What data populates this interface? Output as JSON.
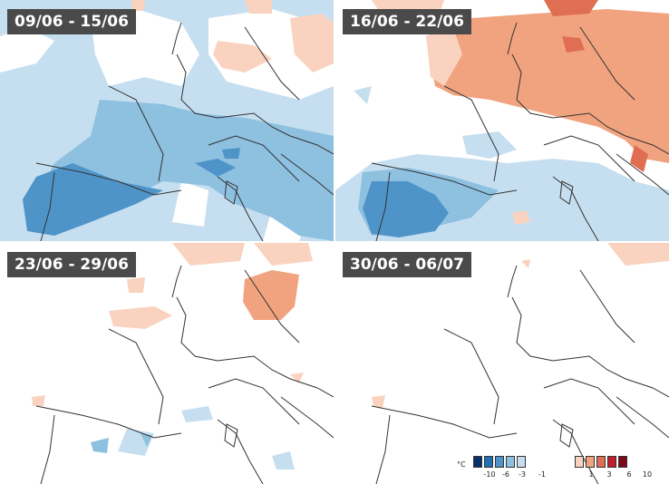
{
  "panels": [
    {
      "label": "09/06 - 15/06"
    },
    {
      "label": "16/06 - 22/06"
    },
    {
      "label": "23/06 - 29/06"
    },
    {
      "label": "30/06 - 06/07"
    }
  ],
  "legend": {
    "unit": "°C",
    "negative_colors": [
      "#08306b",
      "#2171b5",
      "#4f94c9",
      "#8ec0e0",
      "#c6dff0"
    ],
    "positive_colors": [
      "#f9d3bf",
      "#f1a37f",
      "#df6e52",
      "#bf1f2f",
      "#7a0a18"
    ],
    "negative_ticks": [
      "-10",
      "-6",
      "-3",
      "-1"
    ],
    "positive_ticks": [
      "1",
      "3",
      "6",
      "10"
    ]
  }
}
